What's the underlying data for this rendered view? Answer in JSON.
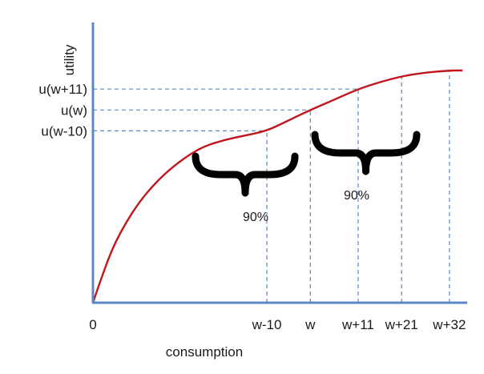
{
  "chart_data": {
    "type": "line",
    "title": "",
    "xlabel": "consumption",
    "ylabel": "utility",
    "x_ticks": [
      {
        "label": "0",
        "x": 0
      },
      {
        "label": "w-10",
        "x": 40
      },
      {
        "label": "w",
        "x": 50
      },
      {
        "label": "w+11",
        "x": 61
      },
      {
        "label": "w+21",
        "x": 71
      },
      {
        "label": "w+32",
        "x": 82
      }
    ],
    "y_ticks": [
      {
        "label": "u(w-10)",
        "y": 0.74
      },
      {
        "label": "u(w)",
        "y": 0.83
      },
      {
        "label": "u(w+11)",
        "y": 0.92
      }
    ],
    "xlim": [
      0,
      87
    ],
    "ylim": [
      0,
      1.2
    ],
    "series": [
      {
        "color": "#c0161b",
        "x": [
          0,
          2,
          5,
          10,
          15,
          20,
          25,
          30,
          35,
          40,
          45,
          50,
          55,
          61,
          66,
          71,
          76,
          82,
          85
        ],
        "y": [
          0,
          0.11,
          0.26,
          0.42,
          0.53,
          0.61,
          0.67,
          0.7,
          0.72,
          0.74,
          0.785,
          0.83,
          0.87,
          0.92,
          0.95,
          0.975,
          0.99,
          1.0,
          1.0
        ]
      }
    ],
    "guides": [
      {
        "x": 40,
        "y": 0.74
      },
      {
        "x": 50,
        "y": 0.83
      },
      {
        "x": 61,
        "y": 0.92
      },
      {
        "x": 71,
        "y": 0.975
      },
      {
        "x": 82,
        "y": 1.0
      }
    ],
    "annotations": [
      {
        "label": "90%",
        "brace_from": 40,
        "brace_to": 61
      },
      {
        "label": "90%",
        "brace_from": 61,
        "brace_to": 82
      }
    ],
    "grid": false,
    "colors": {
      "axis": "#5b87c6",
      "curve": "#c0161b",
      "guide": "#5b87c6",
      "brace": "#000000"
    }
  }
}
